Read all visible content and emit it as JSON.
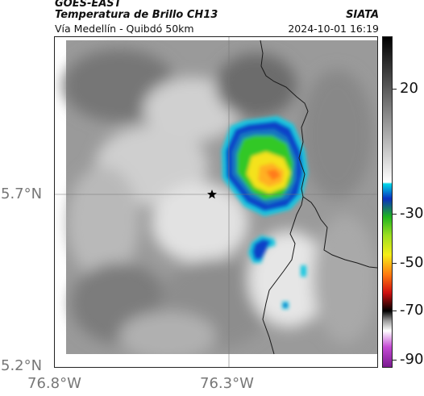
{
  "header": {
    "satellite": "GOES-EAST",
    "product": "Temperatura de Brillo CH13",
    "region": "Vía Medellín - Quibdó 50km",
    "organization": "SIATA",
    "datetime": "2024-10-01 16:19"
  },
  "axes": {
    "x_ticks": [
      "76.8°W",
      "76.3°W"
    ],
    "y_ticks": [
      "5.7°N",
      "5.2°N"
    ]
  },
  "colorbar": {
    "labels": [
      "20",
      "-30",
      "-50",
      "-70",
      "-90"
    ]
  },
  "map": {
    "marker_icon": "star-icon",
    "colors": {
      "cold_core": "#ff8a20",
      "yellow": "#f4e21a",
      "green": "#30c828",
      "blue": "#0a3fc8",
      "cyan": "#14c8e0",
      "boundary": "#1a1a1a"
    }
  }
}
